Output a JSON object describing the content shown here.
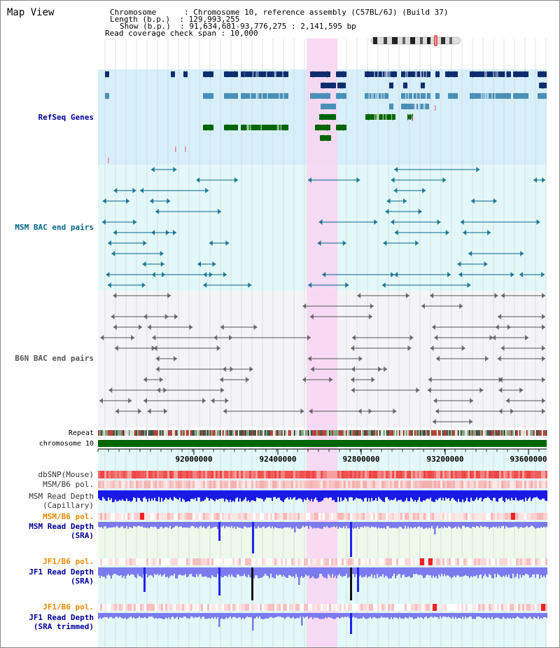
{
  "view": {
    "title": "Map View",
    "info": [
      "Chromosome      : Chromosome 10, reference assembly (C57BL/6J) (Build 37)",
      "Length (b.p.)  : 129,993,255",
      "Show (b.p.)  : 91,634,681-93,776,275 : 2,141,595 bp",
      "Read coverage check span : 10,000"
    ]
  },
  "tracks": {
    "refseq_genes": {
      "label": "RefSeq Genes",
      "color": "#000099"
    },
    "msm_bac": {
      "label": "MSM BAC end pairs",
      "color": "#006688"
    },
    "b6n_bac": {
      "label": "B6N BAC end pairs",
      "color": "#555555"
    },
    "repeat": {
      "label": "Repeat"
    },
    "chromosome": {
      "label": "chromosome 10",
      "color": "#006600"
    },
    "scale": {
      "ticks": [
        "92000000",
        "92400000",
        "92800000",
        "93200000",
        "93600000"
      ]
    },
    "dbsnp": {
      "label": "dbSNP(Mouse)"
    },
    "msm_b6_pol1": {
      "label": "MSM/B6 pol."
    },
    "msm_depth_cap": {
      "label_line1": "MSM Read Depth",
      "label_line2": "(Capillary)"
    },
    "msm_b6_pol2": {
      "label": "MSM/B6 pol.",
      "color": "#ee8800"
    },
    "msm_depth_sra": {
      "label_line1": "MSM Read Depth",
      "label_line2": "(SRA)",
      "color": "#000099"
    },
    "jf1_b6_pol1": {
      "label": "JF1/B6 pol.",
      "color": "#ee8800"
    },
    "jf1_depth_sra": {
      "label_line1": "JF1 Read Depth",
      "label_line2": "(SRA)",
      "color": "#000099"
    },
    "jf1_b6_pol2": {
      "label": "JF1/B6 pol.",
      "color": "#ee8800"
    },
    "jf1_depth_trim": {
      "label_line1": "JF1 Read Depth",
      "label_line2": "(SRA trimmed)",
      "color": "#000099"
    }
  },
  "colors": {
    "highlight": "#f8d6f2",
    "refseq_bg": "#d7effa",
    "msm_bg": "#e3f8f8",
    "b6n_bg": "#f4f4f8",
    "gene_dark": "#0d2d6e",
    "gene_light": "#4a8fb8",
    "gene_green": "#006600",
    "snp_red": "#f05050",
    "depth_blue": "#1a1ae6",
    "depth_lavender": "#7b7bef"
  }
}
